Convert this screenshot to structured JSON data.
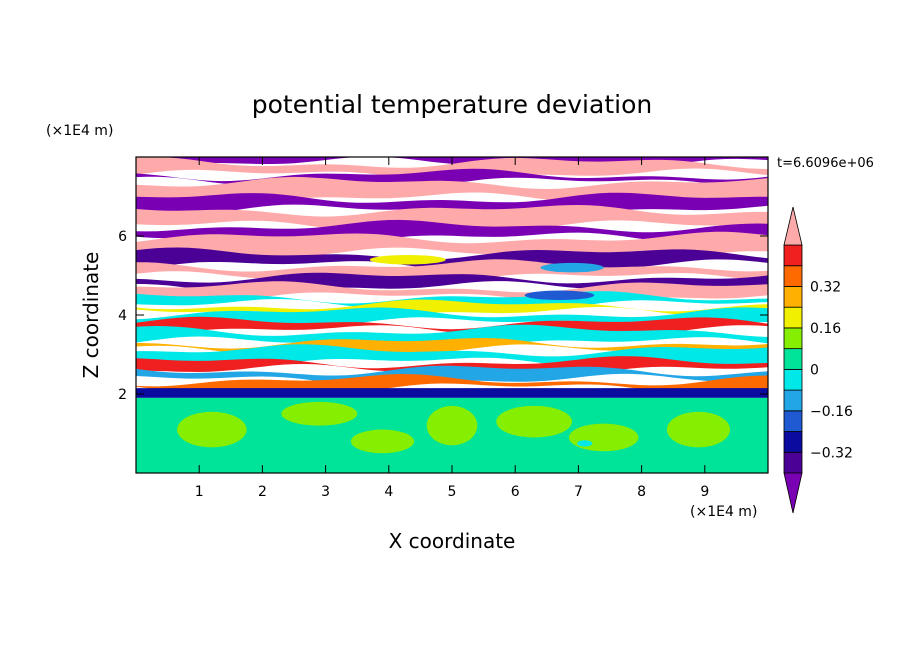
{
  "chart_data": {
    "type": "heatmap",
    "title": "potential temperature deviation",
    "xlabel": "X coordinate",
    "ylabel": "Z coordinate",
    "x_unit": "(×1E4 m)",
    "y_unit": "(×1E4 m)",
    "time_label": "t=6.6096e+06",
    "xlim": [
      0,
      10
    ],
    "ylim": [
      0,
      8
    ],
    "x_ticks": [
      "1",
      "2",
      "3",
      "4",
      "5",
      "6",
      "7",
      "8",
      "9"
    ],
    "y_ticks": [
      "2",
      "4",
      "6"
    ],
    "colorbar": {
      "levels": [
        -0.48,
        -0.4,
        -0.32,
        -0.24,
        -0.16,
        -0.08,
        0,
        0.08,
        0.16,
        0.24,
        0.32,
        0.4,
        0.48
      ],
      "tick_labels": [
        "0.32",
        "0.16",
        "0",
        "−0.16",
        "−0.32"
      ],
      "tick_values": [
        0.32,
        0.16,
        0,
        -0.16,
        -0.32
      ],
      "colors": [
        "#7a00b4",
        "#4b0096",
        "#0b0ba0",
        "#1f5ad2",
        "#23a6e6",
        "#00e8e8",
        "#00e49a",
        "#86ee00",
        "#f0f000",
        "#ffb000",
        "#ff6a00",
        "#f02020",
        "#ffaaaa"
      ]
    },
    "bands": [
      {
        "z": [
          7.85,
          8.0
        ],
        "level": -0.48
      },
      {
        "z": [
          7.55,
          7.85
        ],
        "level": 0.48
      },
      {
        "z": [
          7.35,
          7.55
        ],
        "level": -0.48
      },
      {
        "z": [
          6.95,
          7.35
        ],
        "level": 0.48
      },
      {
        "z": [
          6.65,
          6.95
        ],
        "level": -0.48
      },
      {
        "z": [
          6.25,
          6.65
        ],
        "level": 0.48
      },
      {
        "z": [
          5.95,
          6.25
        ],
        "level": -0.48
      },
      {
        "z": [
          5.55,
          5.95
        ],
        "level": 0.48
      },
      {
        "z": [
          5.25,
          5.55
        ],
        "level": -0.4
      },
      {
        "z": [
          4.95,
          5.25
        ],
        "level": 0.48
      },
      {
        "z": [
          4.7,
          4.95
        ],
        "level": -0.4
      },
      {
        "z": [
          4.45,
          4.7
        ],
        "level": 0.48
      },
      {
        "z": [
          4.25,
          4.45
        ],
        "level": -0.08
      },
      {
        "z": [
          4.05,
          4.25
        ],
        "level": 0.16
      },
      {
        "z": [
          3.8,
          4.05
        ],
        "level": -0.08
      },
      {
        "z": [
          3.6,
          3.8
        ],
        "level": 0.4
      },
      {
        "z": [
          3.3,
          3.6
        ],
        "level": -0.08
      },
      {
        "z": [
          3.1,
          3.3
        ],
        "level": 0.24
      },
      {
        "z": [
          2.8,
          3.1
        ],
        "level": -0.08
      },
      {
        "z": [
          2.6,
          2.8
        ],
        "level": 0.4
      },
      {
        "z": [
          2.35,
          2.6
        ],
        "level": -0.16
      },
      {
        "z": [
          2.15,
          2.35
        ],
        "level": 0.32
      },
      {
        "z": [
          1.9,
          2.15
        ],
        "level": -0.32
      },
      {
        "z": [
          0.0,
          1.9
        ],
        "level": 0
      }
    ],
    "patches": [
      {
        "x": 1.2,
        "z": 1.1,
        "rx": 0.55,
        "rz": 0.45,
        "level": 0.08
      },
      {
        "x": 2.9,
        "z": 1.5,
        "rx": 0.6,
        "rz": 0.3,
        "level": 0.08
      },
      {
        "x": 3.9,
        "z": 0.8,
        "rx": 0.5,
        "rz": 0.3,
        "level": 0.08
      },
      {
        "x": 5.0,
        "z": 1.2,
        "rx": 0.4,
        "rz": 0.5,
        "level": 0.08
      },
      {
        "x": 6.3,
        "z": 1.3,
        "rx": 0.6,
        "rz": 0.4,
        "level": 0.08
      },
      {
        "x": 7.4,
        "z": 0.9,
        "rx": 0.55,
        "rz": 0.35,
        "level": 0.08
      },
      {
        "x": 8.9,
        "z": 1.1,
        "rx": 0.5,
        "rz": 0.45,
        "level": 0.08
      },
      {
        "x": 7.1,
        "z": 0.75,
        "rx": 0.12,
        "rz": 0.08,
        "level": -0.08
      },
      {
        "x": 4.3,
        "z": 5.4,
        "rx": 0.6,
        "rz": 0.12,
        "level": 0.16
      },
      {
        "x": 6.9,
        "z": 5.2,
        "rx": 0.5,
        "rz": 0.12,
        "level": -0.16
      },
      {
        "x": 6.7,
        "z": 4.5,
        "rx": 0.55,
        "rz": 0.12,
        "level": -0.24
      }
    ]
  }
}
